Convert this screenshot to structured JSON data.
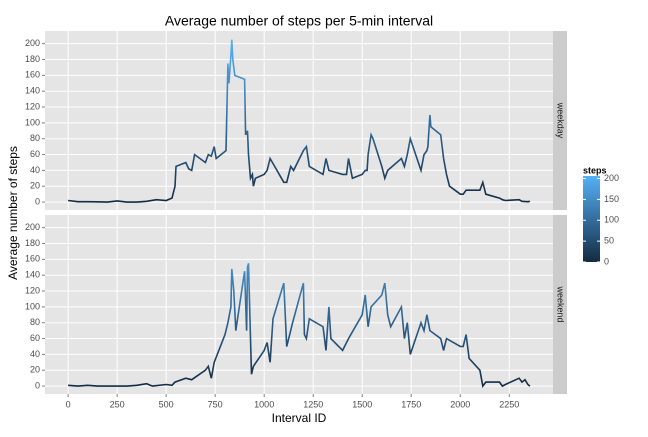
{
  "chart_data": {
    "type": "line",
    "title": "Average number of steps per 5-min interval",
    "x_label": "Interval ID",
    "y_label": "Average number of steps",
    "xlim": [
      -118,
      2473
    ],
    "ylim": [
      -10,
      216
    ],
    "xticks": [
      0,
      250,
      500,
      750,
      1000,
      1250,
      1500,
      1750,
      2000,
      2250
    ],
    "yticks": [
      0,
      20,
      40,
      60,
      80,
      100,
      120,
      140,
      160,
      180,
      200
    ],
    "grid": true,
    "color_scale": {
      "title": "steps",
      "low": "#132B43",
      "high": "#56B1F7",
      "limits": [
        0,
        206
      ],
      "ticks": [
        0,
        50,
        100,
        150,
        200
      ]
    },
    "series": [
      {
        "name": "weekday",
        "x": [
          0,
          50,
          100,
          150,
          200,
          250,
          300,
          350,
          400,
          450,
          500,
          530,
          545,
          550,
          600,
          615,
          630,
          645,
          700,
          715,
          730,
          745,
          755,
          805,
          815,
          820,
          830,
          835,
          840,
          850,
          900,
          905,
          915,
          920,
          930,
          940,
          945,
          955,
          1000,
          1015,
          1030,
          1100,
          1115,
          1135,
          1150,
          1200,
          1215,
          1230,
          1300,
          1315,
          1330,
          1400,
          1420,
          1430,
          1450,
          1500,
          1515,
          1525,
          1530,
          1545,
          1555,
          1600,
          1615,
          1630,
          1700,
          1715,
          1730,
          1745,
          1800,
          1815,
          1830,
          1835,
          1845,
          1850,
          1900,
          1915,
          1930,
          1945,
          2000,
          2015,
          2030,
          2100,
          2115,
          2130,
          2200,
          2215,
          2230,
          2300,
          2315,
          2345,
          2355
        ],
        "values": [
          2,
          0.5,
          0.5,
          0.3,
          0,
          1.5,
          0,
          0,
          1,
          3,
          2,
          5,
          20,
          45,
          50,
          42,
          40,
          60,
          50,
          60,
          58,
          70,
          55,
          65,
          175,
          150,
          185,
          205,
          180,
          160,
          155,
          85,
          90,
          60,
          30,
          35,
          20,
          30,
          35,
          40,
          55,
          25,
          25,
          45,
          40,
          65,
          70,
          45,
          35,
          55,
          40,
          35,
          35,
          55,
          30,
          35,
          40,
          40,
          60,
          85,
          80,
          45,
          30,
          40,
          55,
          45,
          60,
          80,
          40,
          60,
          65,
          70,
          110,
          95,
          85,
          55,
          35,
          20,
          10,
          10,
          15,
          15,
          25,
          10,
          5,
          3,
          2,
          3,
          1,
          0.5,
          1
        ]
      },
      {
        "name": "weekend",
        "x": [
          0,
          50,
          100,
          150,
          200,
          250,
          300,
          350,
          400,
          430,
          500,
          530,
          545,
          600,
          630,
          700,
          715,
          730,
          745,
          800,
          815,
          830,
          835,
          845,
          855,
          900,
          910,
          915,
          920,
          930,
          935,
          945,
          1000,
          1015,
          1030,
          1045,
          1100,
          1115,
          1130,
          1145,
          1200,
          1205,
          1215,
          1230,
          1300,
          1315,
          1330,
          1340,
          1400,
          1430,
          1500,
          1515,
          1530,
          1545,
          1600,
          1615,
          1630,
          1645,
          1700,
          1715,
          1730,
          1745,
          1800,
          1815,
          1830,
          1845,
          1900,
          1915,
          1930,
          2000,
          2015,
          2030,
          2045,
          2100,
          2115,
          2130,
          2200,
          2215,
          2230,
          2300,
          2315,
          2330,
          2345,
          2355
        ],
        "values": [
          1,
          0,
          1,
          0,
          0,
          0,
          0,
          1,
          3,
          0,
          2,
          1,
          5,
          10,
          8,
          20,
          25,
          10,
          30,
          65,
          80,
          100,
          148,
          120,
          70,
          145,
          70,
          150,
          155,
          60,
          15,
          25,
          45,
          55,
          30,
          85,
          130,
          50,
          65,
          80,
          130,
          65,
          60,
          85,
          75,
          45,
          100,
          60,
          45,
          60,
          90,
          115,
          75,
          100,
          115,
          130,
          90,
          75,
          100,
          60,
          80,
          40,
          80,
          70,
          90,
          70,
          60,
          45,
          60,
          50,
          50,
          65,
          35,
          20,
          0,
          5,
          5,
          0,
          2,
          10,
          5,
          8,
          2,
          0
        ]
      }
    ]
  }
}
